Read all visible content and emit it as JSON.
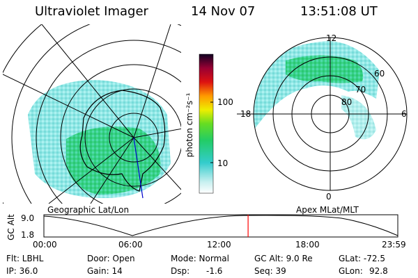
{
  "header": {
    "instrument": "Ultraviolet Imager",
    "date": "14 Nov 07",
    "time": "13:51:08 UT"
  },
  "colorbar": {
    "label": "photon cm⁻²s⁻¹",
    "ticks": [
      "100",
      "10"
    ],
    "scale": "log"
  },
  "geo_map": {
    "caption": "Geographic Lat/Lon"
  },
  "polar_plot": {
    "caption": "Apex MLat/MLT",
    "mlt_labels": {
      "top": "12",
      "left": "18",
      "right": "6",
      "bottom": "0"
    },
    "lat_labels": [
      "60",
      "70",
      "80"
    ]
  },
  "alt_plot": {
    "ylabel": "GC Alt",
    "yticks": [
      "9.0",
      "1.8"
    ],
    "xticks": [
      "00:00",
      "06:00",
      "12:00",
      "18:00",
      "23:59"
    ],
    "current_time_fraction": 0.577,
    "marker_color": "#ff0000"
  },
  "info": {
    "filter": "Flt: LBHL",
    "door": "Door: Open",
    "mode": "Mode: Normal",
    "gc_alt": "GC Alt: 9.0 Re",
    "glat": "GLat: -72.5",
    "ip": "IP: 36.0",
    "gain": "Gain: 14",
    "dsp": "Dsp:",
    "dsp_value": "-1.6",
    "seq": "Seq: 39",
    "glon": "GLon:",
    "glon_value": "92.8"
  }
}
